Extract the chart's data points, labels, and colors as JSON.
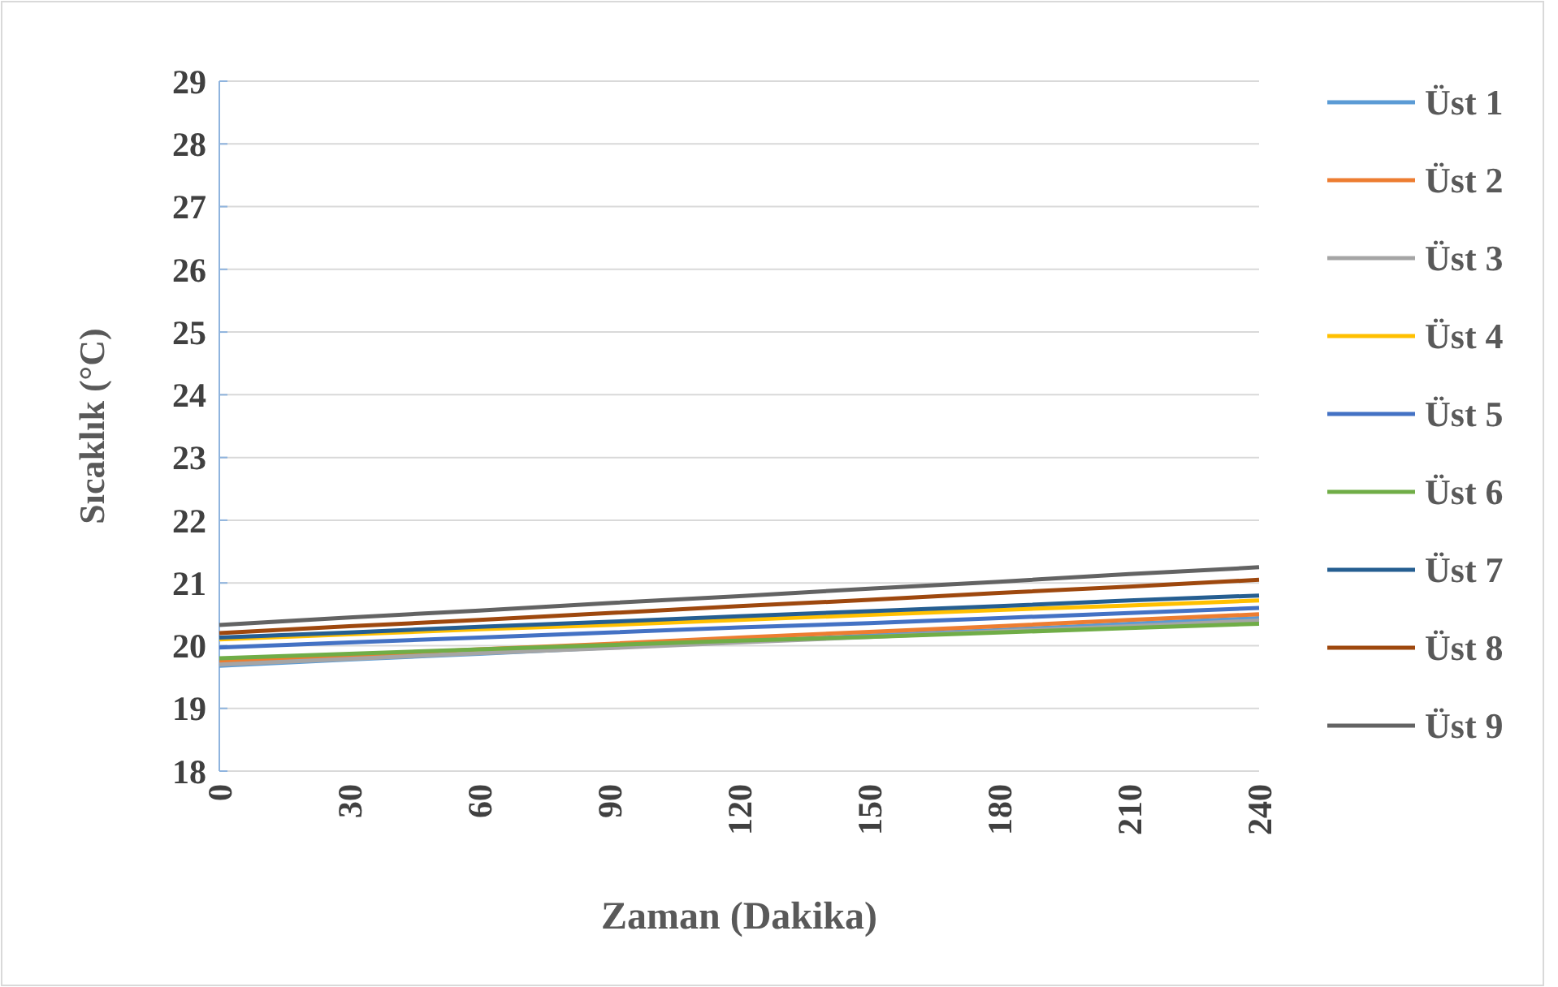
{
  "chart_data": {
    "type": "line",
    "xlabel": "Zaman (Dakika)",
    "ylabel": "Sıcaklık  (°C)",
    "x": [
      0,
      30,
      60,
      90,
      120,
      150,
      180,
      210,
      240
    ],
    "xlim": [
      0,
      240
    ],
    "xticks": [
      0,
      30,
      60,
      90,
      120,
      150,
      180,
      210,
      240
    ],
    "ylim": [
      18,
      29
    ],
    "yticks": [
      18,
      19,
      20,
      21,
      22,
      23,
      24,
      25,
      26,
      27,
      28,
      29
    ],
    "grid": "y",
    "legend": "right",
    "line_style": "solid",
    "series": [
      {
        "name": "Üst 1",
        "color": "#5b9bd5",
        "values": [
          19.68,
          19.78,
          19.87,
          19.97,
          20.06,
          20.16,
          20.25,
          20.35,
          20.44
        ]
      },
      {
        "name": "Üst 2",
        "color": "#ed7d31",
        "values": [
          19.75,
          19.84,
          19.94,
          20.03,
          20.13,
          20.22,
          20.31,
          20.41,
          20.5
        ]
      },
      {
        "name": "Üst 3",
        "color": "#a5a5a5",
        "values": [
          19.7,
          19.79,
          19.88,
          19.96,
          20.05,
          20.14,
          20.23,
          20.31,
          20.4
        ]
      },
      {
        "name": "Üst 4",
        "color": "#ffc000",
        "values": [
          20.1,
          20.18,
          20.26,
          20.33,
          20.41,
          20.49,
          20.57,
          20.64,
          20.72
        ]
      },
      {
        "name": "Üst 5",
        "color": "#4472c4",
        "values": [
          19.97,
          20.05,
          20.13,
          20.21,
          20.29,
          20.36,
          20.44,
          20.52,
          20.6
        ]
      },
      {
        "name": "Üst 6",
        "color": "#70ad47",
        "values": [
          19.8,
          19.87,
          19.94,
          20.01,
          20.08,
          20.14,
          20.21,
          20.28,
          20.35
        ]
      },
      {
        "name": "Üst 7",
        "color": "#255e91",
        "values": [
          20.13,
          20.21,
          20.3,
          20.38,
          20.47,
          20.55,
          20.63,
          20.72,
          20.8
        ]
      },
      {
        "name": "Üst 8",
        "color": "#9e480e",
        "values": [
          20.2,
          20.31,
          20.41,
          20.52,
          20.63,
          20.73,
          20.84,
          20.94,
          21.05
        ]
      },
      {
        "name": "Üst 9",
        "color": "#636363",
        "values": [
          20.33,
          20.45,
          20.56,
          20.68,
          20.79,
          20.91,
          21.02,
          21.14,
          21.25
        ]
      }
    ]
  }
}
